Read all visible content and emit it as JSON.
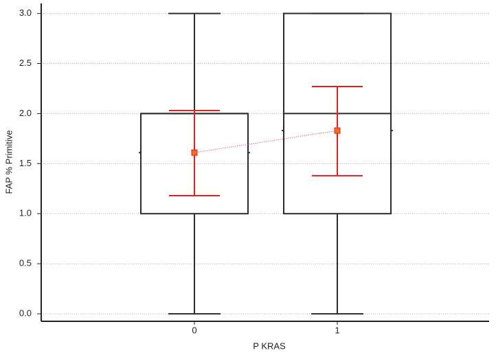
{
  "chart_data": {
    "type": "box",
    "x_label": "P KRAS",
    "y_label": "FAP % Primitive",
    "categories": [
      "0",
      "1"
    ],
    "boxes": [
      {
        "min": 0,
        "q1": 1.0,
        "median": 2.0,
        "q3": 2.0,
        "max": 3.0,
        "mean": 1.61,
        "ci_low": 1.18,
        "ci_high": 2.03
      },
      {
        "min": 0,
        "q1": 1.0,
        "median": 2.0,
        "q3": 3.0,
        "max": 3.0,
        "mean": 1.83,
        "ci_low": 1.38,
        "ci_high": 2.27
      }
    ],
    "box_color": "#2b2b2b",
    "mean_color": "#e02020",
    "mean_fill": "#f07020",
    "ylim": [
      -0.075,
      3.1
    ],
    "yticks": [
      {
        "value": 0,
        "label": "0.0"
      },
      {
        "value": 0.5,
        "label": "0.5"
      },
      {
        "value": 1,
        "label": "1.0"
      },
      {
        "value": 1.5,
        "label": "1.5"
      },
      {
        "value": 2,
        "label": "2.0"
      },
      {
        "value": 2.5,
        "label": "2.5"
      },
      {
        "value": 3,
        "label": "3.0"
      }
    ],
    "grid": true
  }
}
